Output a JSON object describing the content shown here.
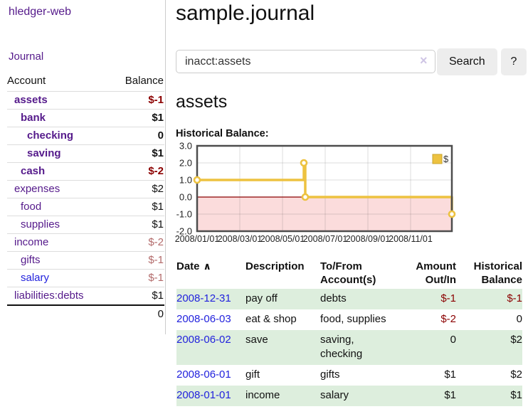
{
  "app": {
    "title": "hledger-web"
  },
  "sidebar": {
    "journal_link": "Journal",
    "accounts": {
      "header_account": "Account",
      "header_balance": "Balance",
      "rows": [
        {
          "name": "assets",
          "balance": "$-1"
        },
        {
          "name": "bank",
          "balance": "$1"
        },
        {
          "name": "checking",
          "balance": "0"
        },
        {
          "name": "saving",
          "balance": "$1"
        },
        {
          "name": "cash",
          "balance": "$-2"
        },
        {
          "name": "expenses",
          "balance": "$2"
        },
        {
          "name": "food",
          "balance": "$1"
        },
        {
          "name": "supplies",
          "balance": "$1"
        },
        {
          "name": "income",
          "balance": "$-2"
        },
        {
          "name": "gifts",
          "balance": "$-1"
        },
        {
          "name": "salary",
          "balance": "$-1"
        },
        {
          "name": "liabilities:debts",
          "balance": "$1"
        }
      ],
      "total": "0"
    }
  },
  "main": {
    "title": "sample.journal",
    "search": {
      "query": "inacct:assets",
      "button_label": "Search",
      "help_label": "?"
    },
    "account_heading": "assets",
    "chart_title": "Historical Balance:"
  },
  "icons": {
    "clear_search": "×",
    "sort_ascending": "∧",
    "legend_swatch": "legend-swatch"
  },
  "chart_data": {
    "type": "line",
    "title": "Historical Balance",
    "step": true,
    "series": [
      {
        "name": "$",
        "color": "#EDC240",
        "points": [
          [
            "2008-01-01",
            1
          ],
          [
            "2008-06-01",
            2
          ],
          [
            "2008-06-03",
            0
          ],
          [
            "2008-12-31",
            -1
          ]
        ]
      }
    ],
    "ylim": [
      -2,
      3
    ],
    "yticks": [
      {
        "value": 3,
        "label": "3.0"
      },
      {
        "value": 2,
        "label": "2.0"
      },
      {
        "value": 1,
        "label": "1.0"
      },
      {
        "value": 0,
        "label": "0.0"
      },
      {
        "value": -1,
        "label": "-1.0"
      },
      {
        "value": -2,
        "label": "-2.0"
      }
    ],
    "xticks": [
      {
        "month": 0,
        "label": "2008/01/01"
      },
      {
        "month": 2,
        "label": "2008/03/01"
      },
      {
        "month": 4,
        "label": "2008/05/01"
      },
      {
        "month": 6,
        "label": "2008/07/01"
      },
      {
        "month": 8,
        "label": "2008/09/01"
      },
      {
        "month": 10,
        "label": "2008/11/01"
      }
    ],
    "grid": true,
    "legend": {
      "position": "top-right",
      "label": "$"
    },
    "negative_region_color": "#fbdcdc",
    "zero_line_color": "#8b0000",
    "marker": "open-circle"
  },
  "register": {
    "headers": {
      "date": "Date",
      "description": "Description",
      "accounts": "To/From Account(s)",
      "amount": "Amount Out/In",
      "balance": "Historical Balance"
    },
    "rows": [
      {
        "date": "2008-12-31",
        "description": "pay off",
        "accounts": "debts",
        "amount": "$-1",
        "balance": "$-1"
      },
      {
        "date": "2008-06-03",
        "description": "eat & shop",
        "accounts": "food, supplies",
        "amount": "$-2",
        "balance": "0"
      },
      {
        "date": "2008-06-02",
        "description": "save",
        "accounts": "saving, checking",
        "amount": "0",
        "balance": "$2"
      },
      {
        "date": "2008-06-01",
        "description": "gift",
        "accounts": "gifts",
        "amount": "$1",
        "balance": "$2"
      },
      {
        "date": "2008-01-01",
        "description": "income",
        "accounts": "salary",
        "amount": "$1",
        "balance": "$1"
      }
    ]
  }
}
